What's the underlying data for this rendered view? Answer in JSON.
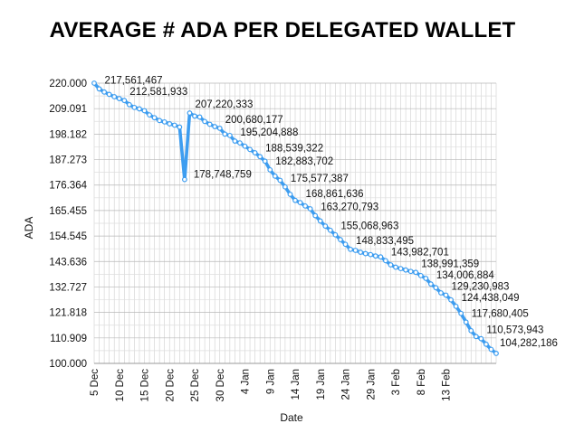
{
  "chart_data": {
    "type": "line",
    "title": "AVERAGE # ADA PER DELEGATED WALLET",
    "xlabel": "Date",
    "ylabel": "ADA",
    "ylim": [
      100,
      220
    ],
    "yticks": [
      "220.000",
      "209.091",
      "198.182",
      "187.273",
      "176.364",
      "165.455",
      "154.545",
      "143.636",
      "132.727",
      "121.818",
      "110.909",
      "100.000"
    ],
    "x_start_day": 0,
    "xticks": [
      "5 Dec",
      "10 Dec",
      "15 Dec",
      "20 Dec",
      "25 Dec",
      "30 Dec",
      "4 Jan",
      "9 Jan",
      "14 Jan",
      "19 Jan",
      "24 Jan",
      "29 Jan",
      "3 Feb",
      "8 Feb",
      "13 Feb"
    ],
    "grid": true,
    "legend": "none",
    "series": [
      {
        "color": "#3d9df0",
        "values": [
          220.0,
          217.561,
          216.2,
          215.2,
          214.2,
          213.4,
          212.582,
          210.8,
          209.6,
          209.0,
          208.2,
          206.4,
          205.2,
          204.0,
          203.4,
          202.6,
          202.0,
          201.2,
          178.749,
          207.22,
          205.9,
          205.5,
          203.6,
          202.4,
          201.4,
          200.68,
          198.2,
          197.6,
          195.205,
          194.4,
          193.0,
          191.6,
          190.2,
          188.539,
          186.6,
          182.884,
          180.2,
          178.4,
          175.577,
          172.4,
          169.8,
          168.862,
          167.4,
          166.2,
          163.271,
          161.0,
          158.8,
          157.0,
          155.069,
          153.0,
          151.0,
          148.833,
          148.4,
          147.6,
          147.0,
          146.6,
          146.0,
          145.6,
          143.983,
          142.2,
          141.2,
          140.6,
          140.0,
          139.4,
          138.991,
          137.6,
          136.4,
          134.007,
          132.4,
          130.2,
          129.231,
          127.2,
          124.438,
          121.4,
          117.68,
          114.0,
          111.5,
          110.574,
          108.2,
          106.0,
          104.282
        ]
      }
    ],
    "data_labels": [
      {
        "index": 1,
        "text": "217,561,467"
      },
      {
        "index": 6,
        "text": "212,581,933"
      },
      {
        "index": 19,
        "text": "207,220,333"
      },
      {
        "index": 18,
        "text": "178,748,759"
      },
      {
        "index": 25,
        "text": "200,680,177"
      },
      {
        "index": 28,
        "text": "195,204,888"
      },
      {
        "index": 33,
        "text": "188,539,322"
      },
      {
        "index": 35,
        "text": "182,883,702"
      },
      {
        "index": 38,
        "text": "175,577,387"
      },
      {
        "index": 41,
        "text": "168,861,636"
      },
      {
        "index": 44,
        "text": "163,270,793"
      },
      {
        "index": 48,
        "text": "155,068,963"
      },
      {
        "index": 51,
        "text": "148,833,495"
      },
      {
        "index": 58,
        "text": "143,982,701"
      },
      {
        "index": 64,
        "text": "138,991,359"
      },
      {
        "index": 67,
        "text": "134,006,884"
      },
      {
        "index": 70,
        "text": "129,230,983"
      },
      {
        "index": 72,
        "text": "124,438,049"
      },
      {
        "index": 74,
        "text": "117,680,405"
      },
      {
        "index": 77,
        "text": "110,573,943"
      },
      {
        "index": 80,
        "text": "104,282,186"
      }
    ]
  }
}
